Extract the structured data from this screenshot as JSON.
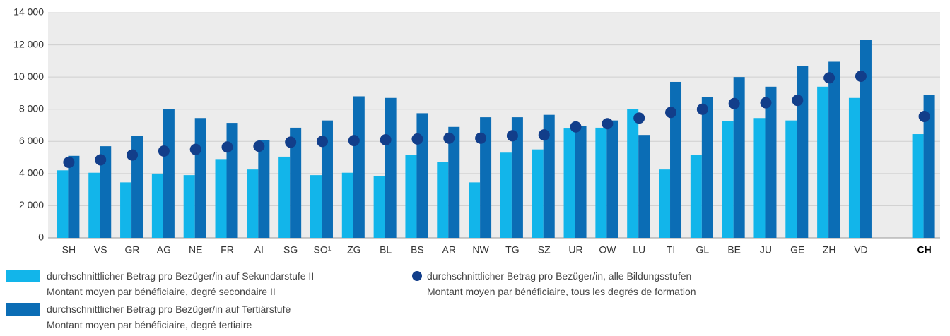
{
  "chart_data": {
    "type": "bar",
    "categories": [
      "SH",
      "VS",
      "GR",
      "AG",
      "NE",
      "FR",
      "AI",
      "SG",
      "SO¹",
      "ZG",
      "BL",
      "BS",
      "AR",
      "NW",
      "TG",
      "SZ",
      "UR",
      "OW",
      "LU",
      "TI",
      "GL",
      "BE",
      "JU",
      "GE",
      "ZH",
      "VD",
      null,
      "CH"
    ],
    "series": [
      {
        "name": "durchschnittlicher Betrag pro Bezüger/in auf Sekundarstufe II\nMontant moyen par bénéficiaire, degré secondaire II",
        "color": "#12b5ea",
        "kind": "bar",
        "values": [
          4200,
          4050,
          3450,
          4000,
          3900,
          4900,
          4250,
          5050,
          3900,
          4050,
          3850,
          5150,
          4700,
          3450,
          5300,
          5500,
          6800,
          6850,
          8000,
          4250,
          5150,
          7250,
          7450,
          7300,
          9400,
          8700,
          null,
          6450
        ]
      },
      {
        "name": "durchschnittlicher Betrag pro Bezüger/in auf Tertiärstufe\nMontant moyen par bénéficiaire, degré tertiaire",
        "color": "#0b6db5",
        "kind": "bar",
        "values": [
          5100,
          5700,
          6350,
          8000,
          7450,
          7150,
          6100,
          6850,
          7300,
          8800,
          8700,
          7750,
          6900,
          7500,
          7500,
          7650,
          6950,
          7300,
          6400,
          9700,
          8750,
          10000,
          9400,
          10700,
          10950,
          12300,
          null,
          8900
        ]
      },
      {
        "name": "durchschnittlicher Betrag pro Bezüger/in, alle Bildungsstufen\nMontant moyen par bénéficiaire, tous les degrés de formation",
        "color": "#123e8a",
        "kind": "dot",
        "values": [
          4700,
          4850,
          5150,
          5400,
          5500,
          5650,
          5700,
          5950,
          6000,
          6050,
          6100,
          6150,
          6200,
          6200,
          6350,
          6400,
          6900,
          7100,
          7450,
          7800,
          8000,
          8350,
          8400,
          8550,
          9950,
          10050,
          null,
          7550
        ]
      }
    ],
    "ylim": [
      0,
      14000
    ],
    "yticks": [
      {
        "value": 0,
        "label": "0"
      },
      {
        "value": 2000,
        "label": "2 000"
      },
      {
        "value": 4000,
        "label": "4 000"
      },
      {
        "value": 6000,
        "label": "6 000"
      },
      {
        "value": 8000,
        "label": "8 000"
      },
      {
        "value": 10000,
        "label": "10 000"
      },
      {
        "value": 12000,
        "label": "12 000"
      },
      {
        "value": 14000,
        "label": "14 000"
      }
    ],
    "grid": true
  }
}
